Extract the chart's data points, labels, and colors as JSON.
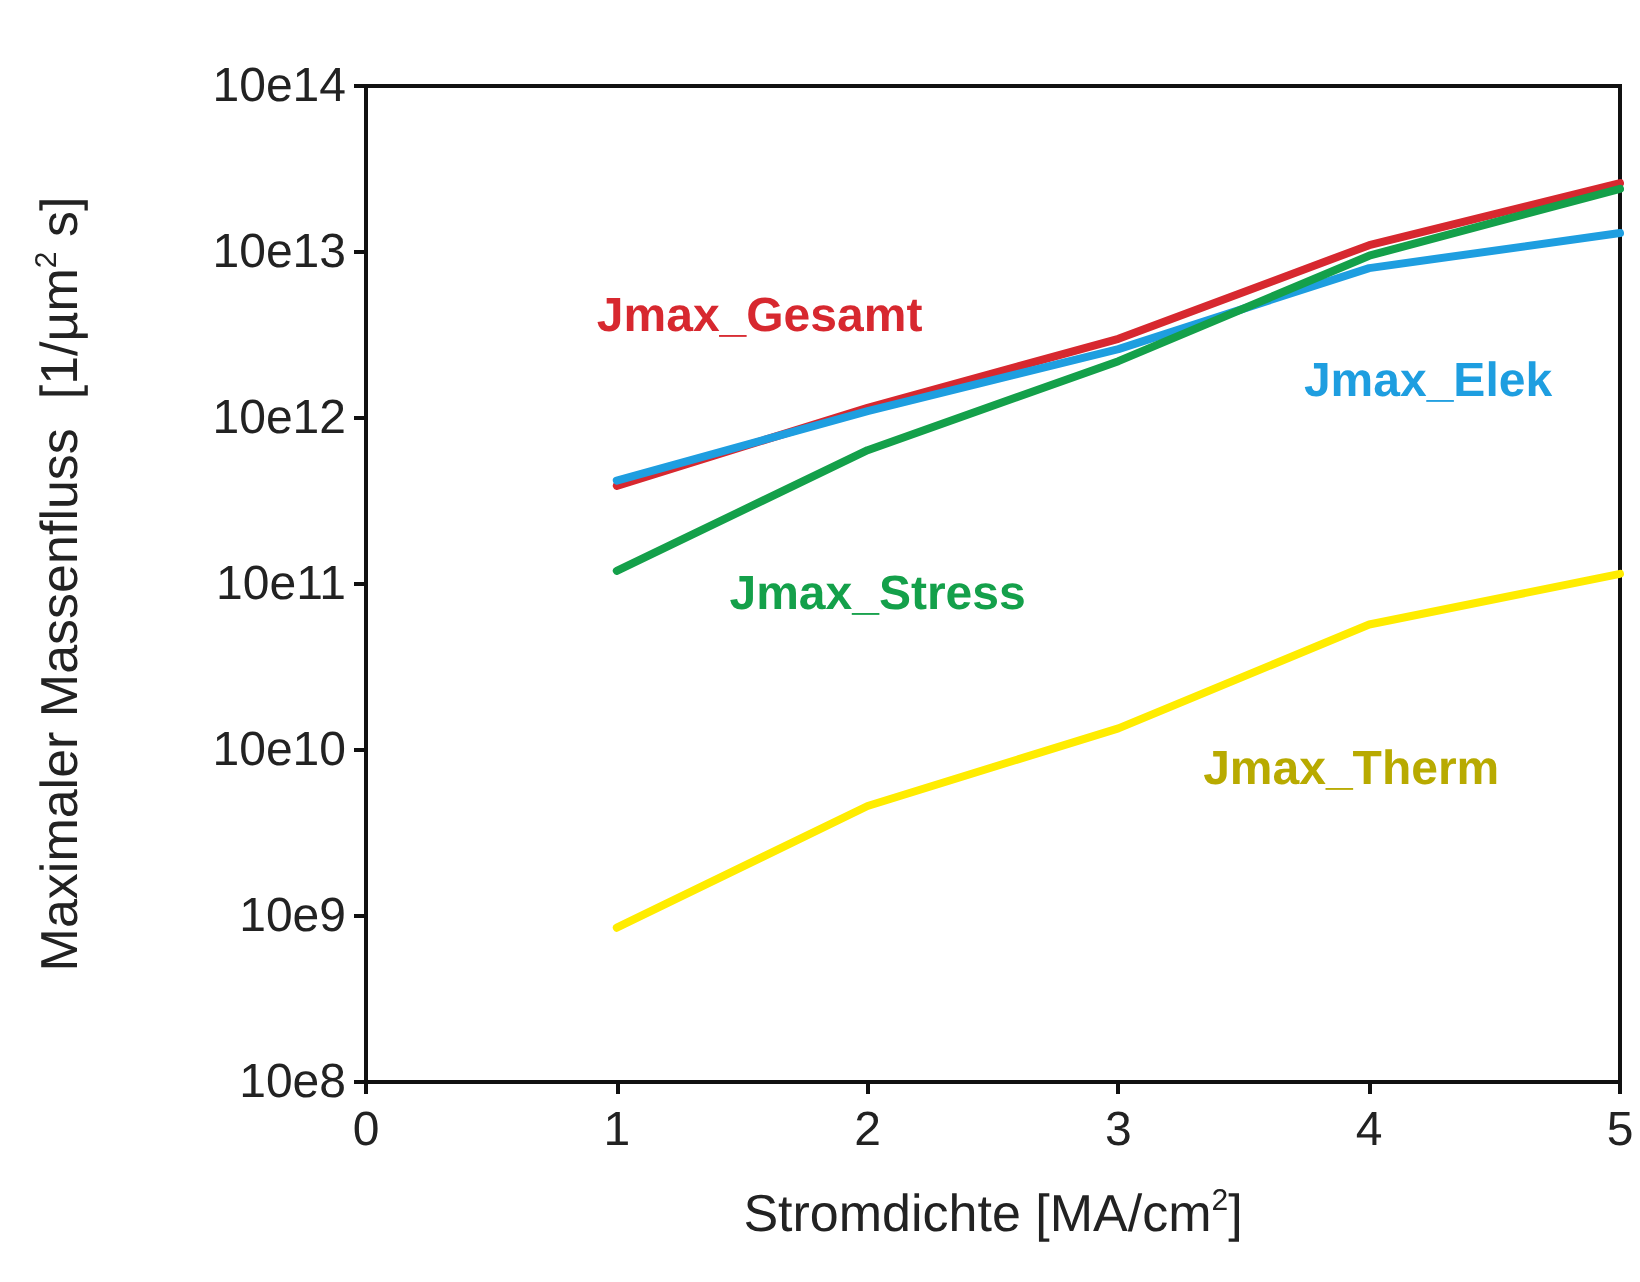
{
  "chart_data": {
    "type": "line",
    "xlabel": "Stromdichte [MA/cm$^{2}$]",
    "ylabel": "Maximaler Massenfluss  [1/µm$^{2}$ s]",
    "x": [
      1,
      2,
      3,
      4,
      5
    ],
    "series": [
      {
        "name": "Jmax_Gesamt",
        "color": "#d7282f",
        "values": [
          3900000000000.0,
          11500000000000.0,
          30000000000000.0,
          110000000000000.0,
          260000000000000.0
        ]
      },
      {
        "name": "Jmax_Elek",
        "color": "#1e9ee0",
        "values": [
          4200000000000.0,
          11000000000000.0,
          26000000000000.0,
          80000000000000.0,
          130000000000000.0
        ]
      },
      {
        "name": "Jmax_Stress",
        "color": "#14a04a",
        "values": [
          1200000000000.0,
          6400000000000.0,
          22000000000000.0,
          95000000000000.0,
          240000000000000.0
        ]
      },
      {
        "name": "Jmax_Therm",
        "color": "#ffec00",
        "values": [
          8500000000.0,
          46000000000.0,
          135000000000.0,
          570000000000.0,
          1150000000000.0
        ]
      }
    ],
    "xlim": [
      0,
      5
    ],
    "xticks": [
      0,
      1,
      2,
      3,
      4,
      5
    ],
    "ylim": [
      1000000000.0,
      1000000000000000.0
    ],
    "log": "y",
    "yticks": [
      {
        "value": 1000000000.0,
        "label": "10e8"
      },
      {
        "value": 10000000000.0,
        "label": "10e9"
      },
      {
        "value": 100000000000.0,
        "label": "10e10"
      },
      {
        "value": 1000000000000.0,
        "label": "10e11"
      },
      {
        "value": 10000000000000.0,
        "label": "10e12"
      },
      {
        "value": 100000000000000.0,
        "label": "10e13"
      },
      {
        "value": 1000000000000000.0,
        "label": "10e14"
      }
    ],
    "grid": false,
    "legend": false,
    "marker": "none",
    "line_style": "solid"
  }
}
